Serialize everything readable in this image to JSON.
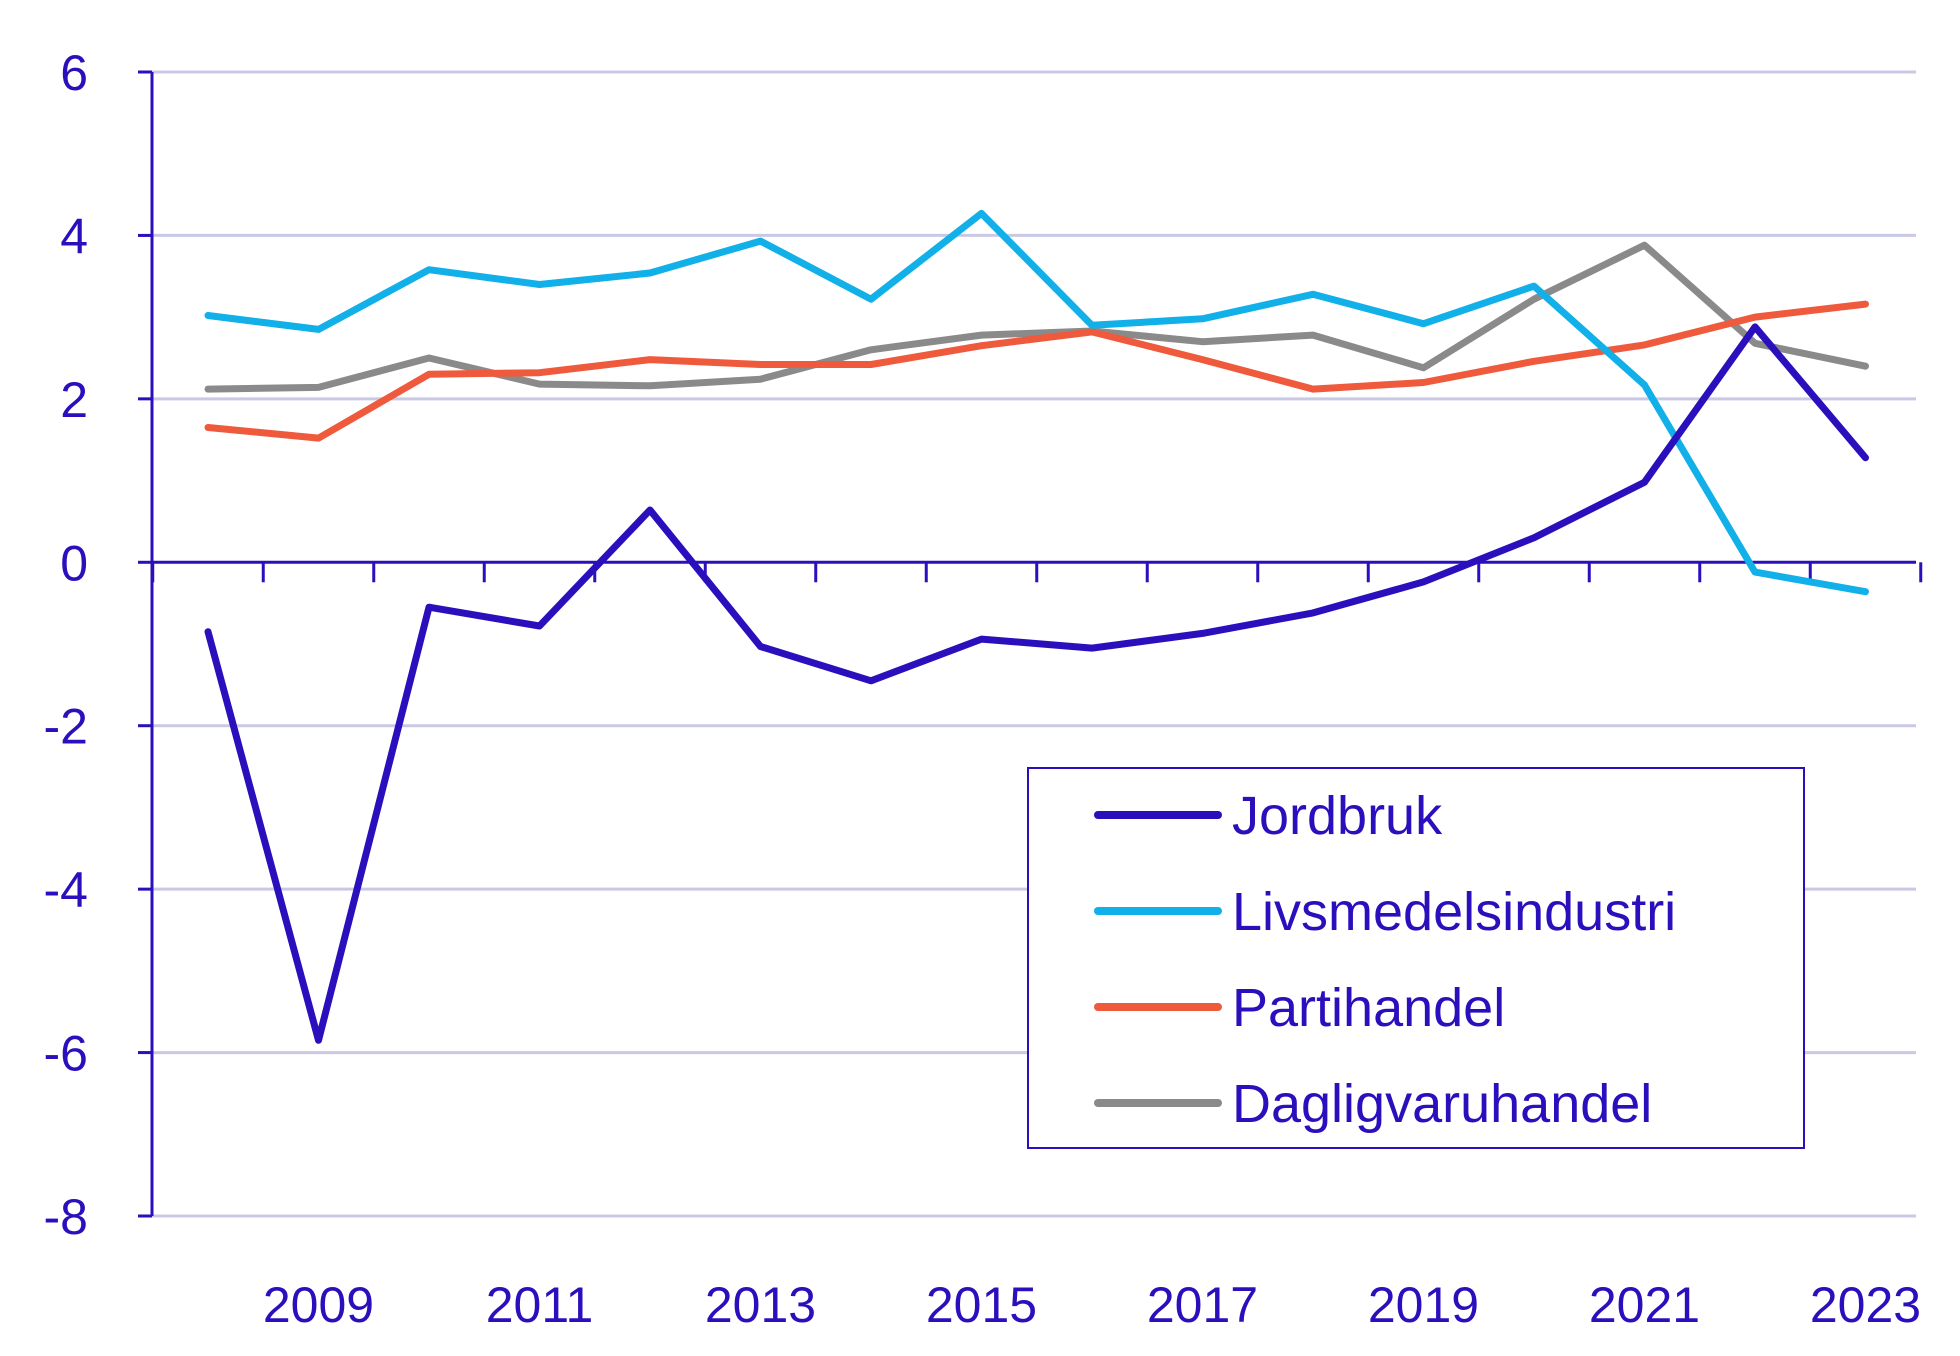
{
  "chart_data": {
    "type": "line",
    "x": [
      2008,
      2009,
      2010,
      2011,
      2012,
      2013,
      2014,
      2015,
      2016,
      2017,
      2018,
      2019,
      2020,
      2021,
      2022,
      2023
    ],
    "x_tick_labels": [
      "2009",
      "2011",
      "2013",
      "2015",
      "2017",
      "2019",
      "2021",
      "2023"
    ],
    "y_tick_labels": [
      "6",
      "4",
      "2",
      "0",
      "-2",
      "-4",
      "-6",
      "-8"
    ],
    "ylim": [
      -8,
      6
    ],
    "y_ticks": [
      6,
      4,
      2,
      0,
      -2,
      -4,
      -6,
      -8
    ],
    "grid": true,
    "legend_position": "bottom-right",
    "title": "",
    "xlabel": "",
    "ylabel": "",
    "series": [
      {
        "name": "Jordbruk",
        "color": "#2a0fbd",
        "values": [
          -0.85,
          -5.85,
          -0.55,
          -0.78,
          0.64,
          -1.03,
          -1.45,
          -0.94,
          -1.05,
          -0.87,
          -0.62,
          -0.24,
          0.3,
          0.98,
          2.88,
          1.28
        ]
      },
      {
        "name": "Livsmedelsindustri",
        "color": "#12b0e8",
        "values": [
          3.02,
          2.85,
          3.58,
          3.4,
          3.54,
          3.93,
          3.22,
          4.27,
          2.9,
          2.98,
          3.28,
          2.92,
          3.38,
          2.17,
          -0.12,
          -0.36
        ]
      },
      {
        "name": "Partihandel",
        "color": "#ef5a3c",
        "values": [
          1.65,
          1.52,
          2.3,
          2.32,
          2.48,
          2.42,
          2.42,
          2.65,
          2.82,
          2.48,
          2.12,
          2.2,
          2.46,
          2.66,
          3.0,
          3.16
        ]
      },
      {
        "name": "Dagligvaruhandel",
        "color": "#8a8a8a",
        "values": [
          2.12,
          2.14,
          2.5,
          2.18,
          2.16,
          2.24,
          2.6,
          2.78,
          2.83,
          2.7,
          2.78,
          2.38,
          3.22,
          3.88,
          2.68,
          2.4
        ]
      }
    ],
    "colors": {
      "axis": "#2a0fbd",
      "grid": "#c9c9e6",
      "text": "#2a0fbd"
    }
  }
}
